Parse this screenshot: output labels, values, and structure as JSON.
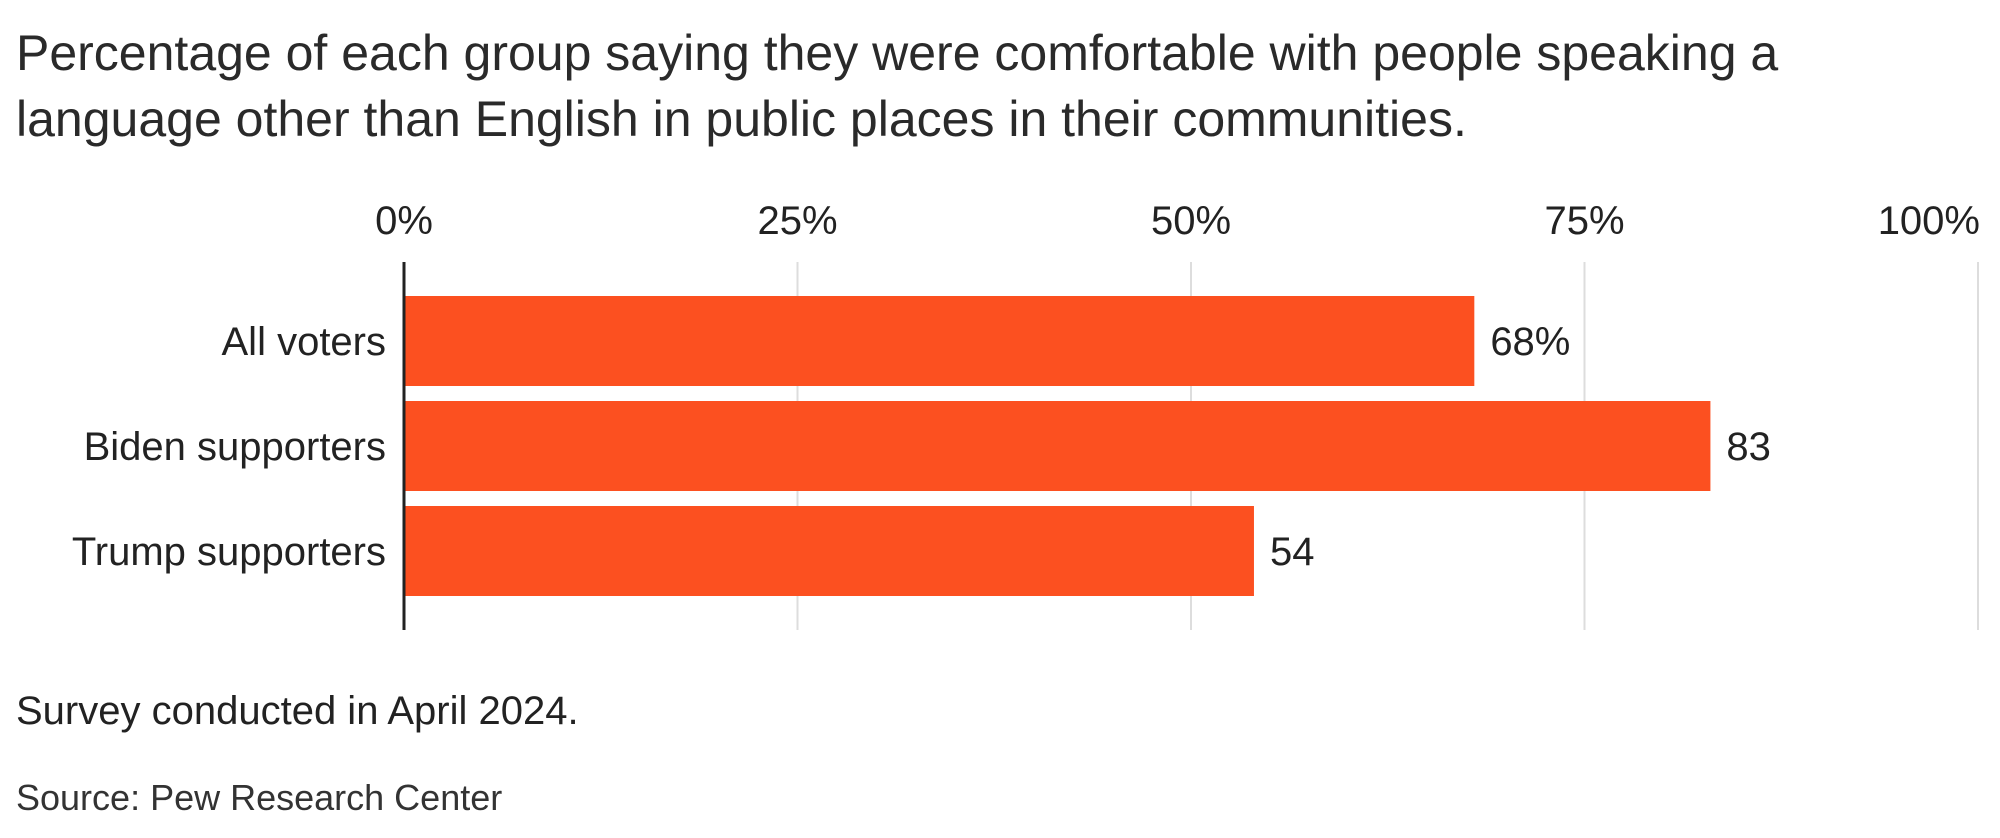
{
  "chart_data": {
    "type": "bar",
    "orientation": "horizontal",
    "title": "Percentage of each group saying they were comfortable with people speaking a language other than English in public places in their communities.",
    "categories": [
      "All voters",
      "Biden supporters",
      "Trump supporters"
    ],
    "values": [
      68,
      83,
      54
    ],
    "value_labels": [
      "68%",
      "83",
      "54"
    ],
    "xlim": [
      0,
      100
    ],
    "x_ticks": [
      0,
      25,
      50,
      75,
      100
    ],
    "x_tick_labels": [
      "0%",
      "25%",
      "50%",
      "75%",
      "100%"
    ],
    "x_axis_position": "top",
    "grid": true,
    "legend": "none",
    "bar_color": "#fc5020",
    "grid_color": "#dddddd",
    "axis_color": "#222222"
  },
  "footer": {
    "note": "Survey conducted in April 2024.",
    "source": "Source: Pew Research Center"
  }
}
